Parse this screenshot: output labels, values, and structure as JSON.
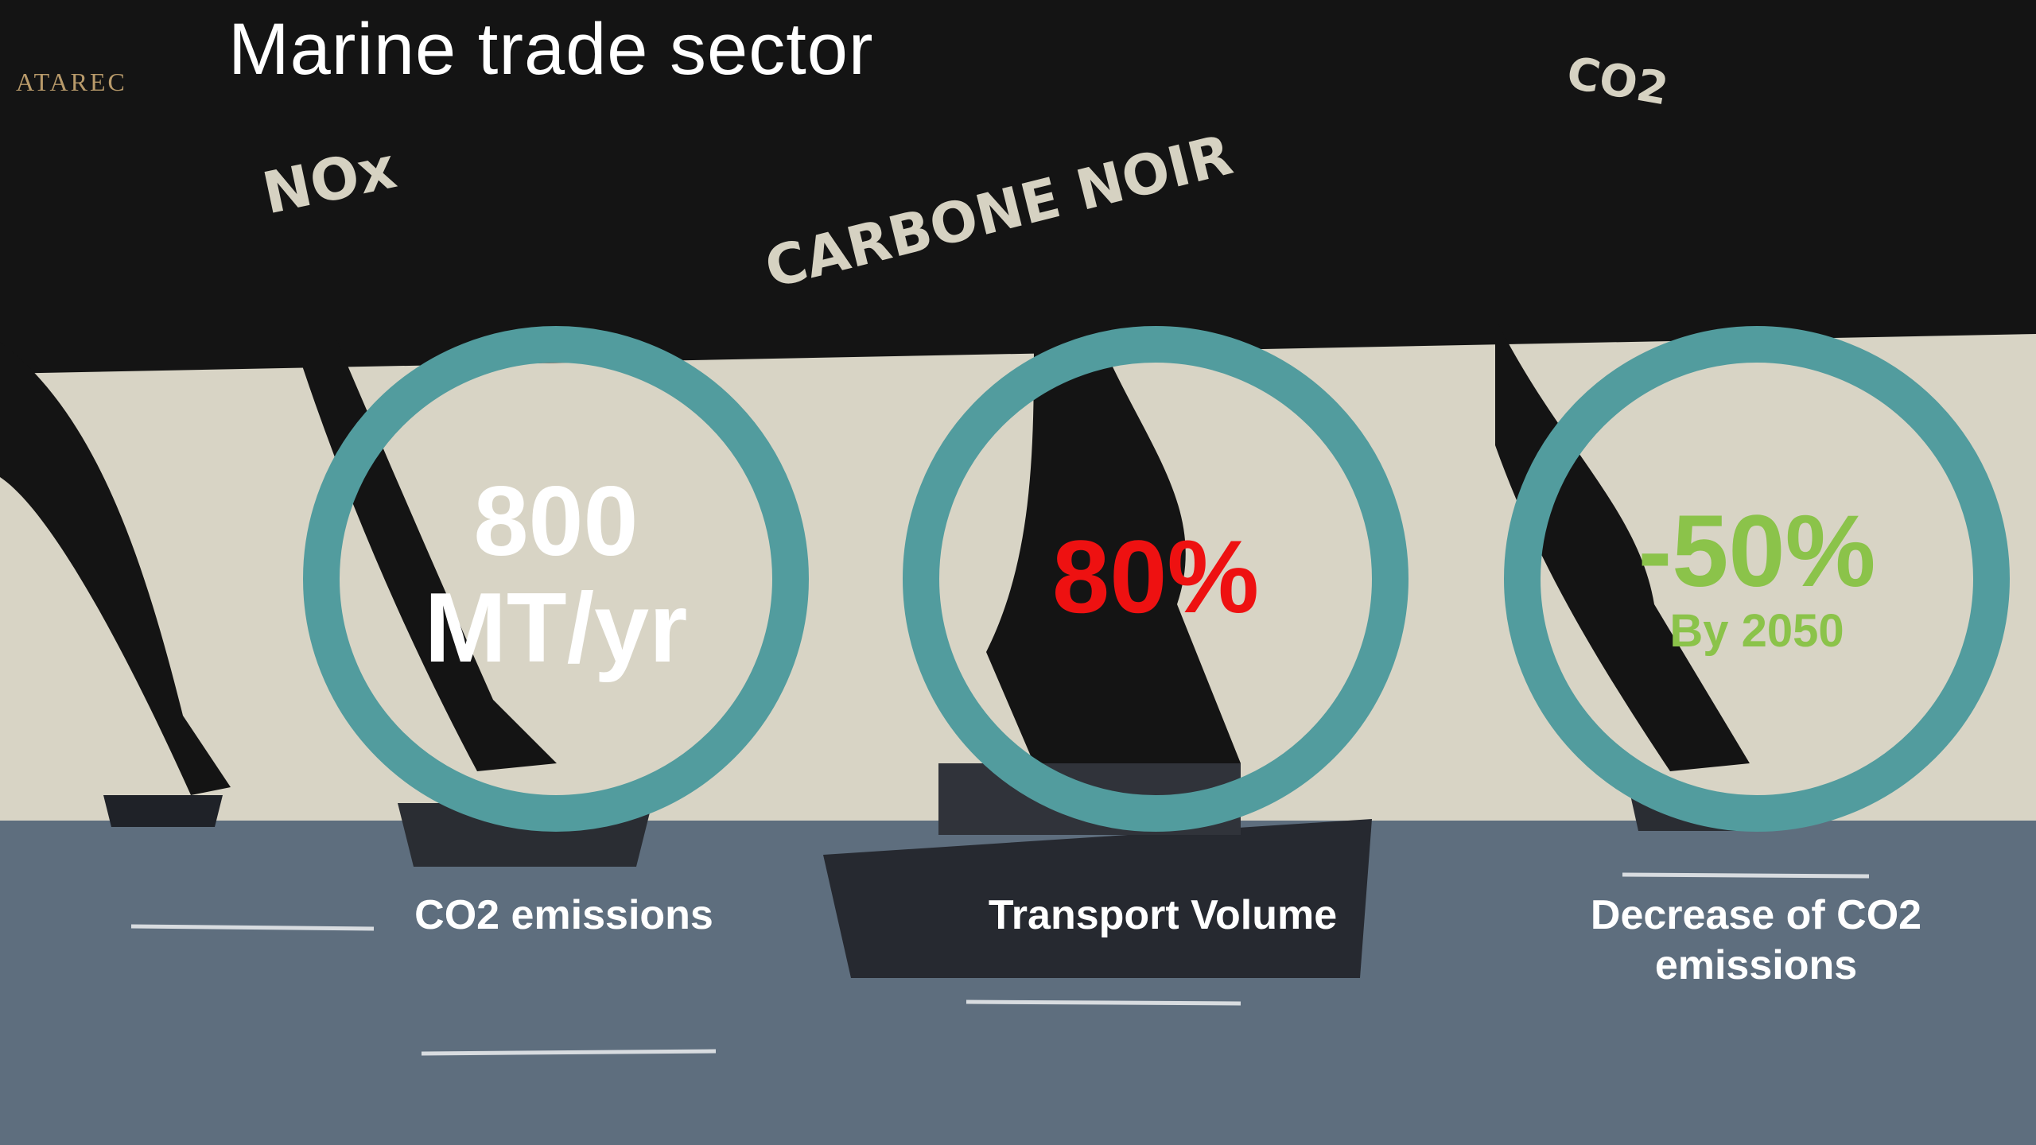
{
  "header": {
    "title": "Marine trade sector",
    "logo": "ATAREC"
  },
  "background_labels": [
    "NOx",
    "CARBONE NOIR",
    "CO2"
  ],
  "stats": [
    {
      "value": "800",
      "unit": "MT/yr",
      "label": "CO2 emissions"
    },
    {
      "value": "80%",
      "label": "Transport Volume"
    },
    {
      "value": "-50%",
      "note": "By 2050",
      "label": "Decrease of CO2 emissions"
    }
  ]
}
